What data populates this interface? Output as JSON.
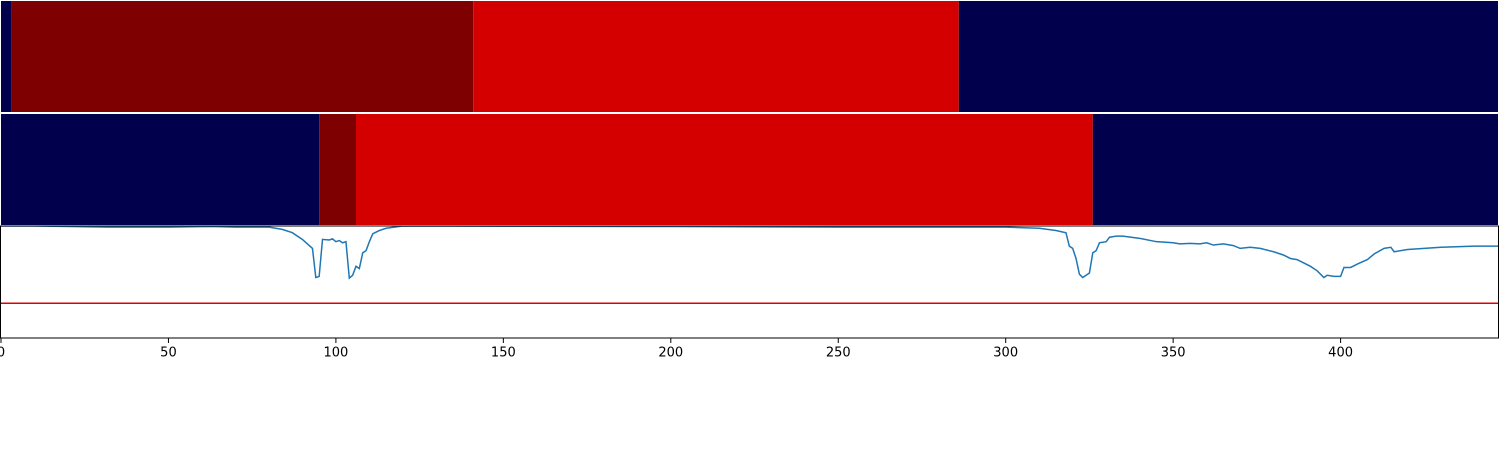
{
  "chart_data": [
    {
      "type": "strip",
      "xlim": [
        0,
        447
      ],
      "boundaries": [
        0,
        3,
        141,
        286,
        447
      ],
      "colors": [
        "#00004c",
        "#7f0000",
        "#d40000",
        "#00004c"
      ]
    },
    {
      "type": "strip",
      "xlim": [
        0,
        447
      ],
      "boundaries": [
        0,
        95,
        106,
        326,
        447
      ],
      "colors": [
        "#00004c",
        "#7f0000",
        "#d40000",
        "#00004c"
      ]
    },
    {
      "type": "line",
      "xlim": [
        0,
        447
      ],
      "ylim": [
        0,
        1
      ],
      "xticks": [
        0,
        50,
        100,
        150,
        200,
        250,
        300,
        350,
        400
      ],
      "color": "#1f77b4",
      "hline": 0.31,
      "hline_color": "#e00000",
      "x": [
        0,
        10,
        20,
        32,
        50,
        63,
        70,
        80,
        84,
        87,
        90,
        93,
        94,
        95,
        96,
        98,
        99,
        100,
        101,
        102,
        103,
        104,
        105,
        106,
        107,
        108,
        109,
        110,
        111,
        113,
        115,
        120,
        200,
        250,
        300,
        310,
        315,
        318,
        319,
        320,
        321,
        322,
        323,
        324,
        325,
        326,
        327,
        328,
        330,
        331,
        333,
        335,
        340,
        345,
        350,
        352,
        355,
        358,
        360,
        362,
        365,
        368,
        370,
        373,
        376,
        380,
        383,
        385,
        387,
        389,
        391,
        393,
        395,
        396,
        398,
        400,
        401,
        403,
        405,
        408,
        410,
        413,
        415,
        416,
        420,
        425,
        430,
        440,
        447
      ],
      "y": [
        1.0,
        1.0,
        0.995,
        0.99,
        0.99,
        0.995,
        0.99,
        0.99,
        0.97,
        0.94,
        0.88,
        0.8,
        0.54,
        0.55,
        0.88,
        0.875,
        0.885,
        0.86,
        0.87,
        0.85,
        0.86,
        0.535,
        0.56,
        0.64,
        0.62,
        0.76,
        0.78,
        0.86,
        0.93,
        0.96,
        0.98,
        1.0,
        0.995,
        0.99,
        0.99,
        0.98,
        0.96,
        0.94,
        0.82,
        0.8,
        0.71,
        0.57,
        0.54,
        0.56,
        0.58,
        0.76,
        0.78,
        0.85,
        0.86,
        0.9,
        0.91,
        0.91,
        0.89,
        0.86,
        0.85,
        0.84,
        0.845,
        0.84,
        0.85,
        0.83,
        0.84,
        0.825,
        0.8,
        0.81,
        0.8,
        0.77,
        0.74,
        0.71,
        0.7,
        0.67,
        0.64,
        0.6,
        0.54,
        0.56,
        0.55,
        0.55,
        0.63,
        0.63,
        0.66,
        0.7,
        0.75,
        0.8,
        0.81,
        0.77,
        0.79,
        0.8,
        0.81,
        0.82,
        0.82
      ]
    }
  ]
}
